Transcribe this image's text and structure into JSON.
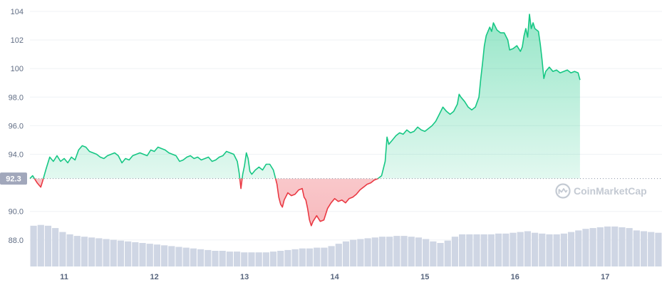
{
  "chart_data": {
    "type": "area",
    "baseline": 92.3,
    "baseline_label": "92.3",
    "ylim": [
      86.0,
      104.5
    ],
    "y_ticks": [
      "104",
      "102",
      "100",
      "98.0",
      "96.0",
      "94.0",
      "90.0",
      "88.0"
    ],
    "y_tick_values": [
      104,
      102,
      100,
      98,
      96,
      94,
      90,
      88
    ],
    "x_ticks": [
      "11",
      "12",
      "13",
      "14",
      "15",
      "16",
      "17"
    ],
    "x_tick_values": [
      11,
      12,
      13,
      14,
      15,
      16,
      17
    ],
    "xlim": [
      10.62,
      17.63
    ],
    "colors": {
      "up": "#16c784",
      "down": "#ea3943",
      "volume": "#cfd6e4",
      "baseline": "#8a93a6",
      "label_bg": "#a1a7bb"
    },
    "series": [
      {
        "values": [
          [
            10.62,
            92.3
          ],
          [
            10.65,
            92.5
          ],
          [
            10.7,
            92.0
          ],
          [
            10.74,
            91.7
          ],
          [
            10.76,
            92.1
          ],
          [
            10.8,
            93.0
          ],
          [
            10.84,
            93.8
          ],
          [
            10.88,
            93.5
          ],
          [
            10.92,
            93.9
          ],
          [
            10.96,
            93.5
          ],
          [
            11.0,
            93.7
          ],
          [
            11.04,
            93.4
          ],
          [
            11.08,
            93.8
          ],
          [
            11.12,
            93.6
          ],
          [
            11.16,
            94.3
          ],
          [
            11.2,
            94.6
          ],
          [
            11.24,
            94.5
          ],
          [
            11.28,
            94.2
          ],
          [
            11.32,
            94.1
          ],
          [
            11.36,
            94.0
          ],
          [
            11.4,
            93.8
          ],
          [
            11.44,
            93.7
          ],
          [
            11.48,
            93.9
          ],
          [
            11.52,
            94.0
          ],
          [
            11.56,
            94.1
          ],
          [
            11.6,
            93.9
          ],
          [
            11.64,
            93.4
          ],
          [
            11.68,
            93.7
          ],
          [
            11.72,
            93.6
          ],
          [
            11.76,
            93.9
          ],
          [
            11.8,
            94.0
          ],
          [
            11.84,
            94.1
          ],
          [
            11.88,
            94.0
          ],
          [
            11.92,
            93.9
          ],
          [
            11.96,
            94.3
          ],
          [
            12.0,
            94.2
          ],
          [
            12.04,
            94.5
          ],
          [
            12.08,
            94.4
          ],
          [
            12.12,
            94.3
          ],
          [
            12.16,
            94.1
          ],
          [
            12.2,
            94.0
          ],
          [
            12.24,
            93.9
          ],
          [
            12.28,
            93.5
          ],
          [
            12.32,
            93.6
          ],
          [
            12.36,
            93.8
          ],
          [
            12.4,
            93.9
          ],
          [
            12.44,
            93.7
          ],
          [
            12.48,
            93.8
          ],
          [
            12.52,
            93.6
          ],
          [
            12.56,
            93.7
          ],
          [
            12.6,
            93.8
          ],
          [
            12.64,
            93.5
          ],
          [
            12.68,
            93.6
          ],
          [
            12.72,
            93.8
          ],
          [
            12.76,
            93.9
          ],
          [
            12.8,
            94.2
          ],
          [
            12.84,
            94.1
          ],
          [
            12.88,
            94.0
          ],
          [
            12.92,
            93.5
          ],
          [
            12.94,
            92.7
          ],
          [
            12.96,
            91.6
          ],
          [
            12.98,
            92.6
          ],
          [
            13.0,
            93.2
          ],
          [
            13.02,
            94.1
          ],
          [
            13.04,
            93.7
          ],
          [
            13.06,
            92.8
          ],
          [
            13.08,
            92.6
          ],
          [
            13.12,
            92.9
          ],
          [
            13.16,
            93.1
          ],
          [
            13.2,
            92.9
          ],
          [
            13.24,
            93.3
          ],
          [
            13.28,
            93.3
          ],
          [
            13.32,
            92.9
          ],
          [
            13.34,
            92.4
          ],
          [
            13.36,
            91.9
          ],
          [
            13.38,
            91.0
          ],
          [
            13.4,
            90.5
          ],
          [
            13.42,
            90.3
          ],
          [
            13.44,
            90.8
          ],
          [
            13.48,
            91.3
          ],
          [
            13.52,
            91.1
          ],
          [
            13.56,
            91.2
          ],
          [
            13.6,
            91.5
          ],
          [
            13.64,
            91.6
          ],
          [
            13.66,
            91.0
          ],
          [
            13.68,
            90.8
          ],
          [
            13.7,
            90.2
          ],
          [
            13.72,
            89.4
          ],
          [
            13.74,
            89.0
          ],
          [
            13.76,
            89.3
          ],
          [
            13.8,
            89.7
          ],
          [
            13.84,
            89.3
          ],
          [
            13.88,
            89.4
          ],
          [
            13.92,
            90.2
          ],
          [
            13.96,
            90.6
          ],
          [
            14.0,
            90.9
          ],
          [
            14.04,
            90.7
          ],
          [
            14.08,
            90.8
          ],
          [
            14.12,
            90.6
          ],
          [
            14.16,
            90.9
          ],
          [
            14.2,
            91.0
          ],
          [
            14.24,
            91.2
          ],
          [
            14.28,
            91.5
          ],
          [
            14.32,
            91.7
          ],
          [
            14.36,
            91.9
          ],
          [
            14.4,
            92.0
          ],
          [
            14.44,
            92.2
          ],
          [
            14.48,
            92.3
          ],
          [
            14.52,
            92.5
          ],
          [
            14.56,
            93.5
          ],
          [
            14.58,
            95.2
          ],
          [
            14.6,
            94.7
          ],
          [
            14.64,
            95.0
          ],
          [
            14.68,
            95.3
          ],
          [
            14.72,
            95.5
          ],
          [
            14.76,
            95.4
          ],
          [
            14.8,
            95.7
          ],
          [
            14.84,
            95.5
          ],
          [
            14.88,
            95.6
          ],
          [
            14.92,
            95.9
          ],
          [
            14.96,
            95.7
          ],
          [
            15.0,
            95.6
          ],
          [
            15.04,
            95.8
          ],
          [
            15.08,
            96.0
          ],
          [
            15.12,
            96.3
          ],
          [
            15.16,
            96.8
          ],
          [
            15.2,
            97.3
          ],
          [
            15.24,
            97.0
          ],
          [
            15.28,
            96.8
          ],
          [
            15.32,
            97.0
          ],
          [
            15.36,
            97.5
          ],
          [
            15.38,
            98.2
          ],
          [
            15.4,
            98.0
          ],
          [
            15.44,
            97.7
          ],
          [
            15.48,
            97.3
          ],
          [
            15.52,
            97.1
          ],
          [
            15.56,
            97.3
          ],
          [
            15.6,
            98.0
          ],
          [
            15.62,
            99.3
          ],
          [
            15.64,
            100.4
          ],
          [
            15.66,
            101.6
          ],
          [
            15.68,
            102.3
          ],
          [
            15.72,
            102.9
          ],
          [
            15.74,
            102.6
          ],
          [
            15.76,
            103.2
          ],
          [
            15.8,
            102.7
          ],
          [
            15.84,
            102.5
          ],
          [
            15.88,
            102.5
          ],
          [
            15.92,
            102.0
          ],
          [
            15.94,
            101.3
          ],
          [
            15.98,
            101.4
          ],
          [
            16.02,
            101.6
          ],
          [
            16.06,
            101.2
          ],
          [
            16.08,
            101.5
          ],
          [
            16.1,
            102.3
          ],
          [
            16.12,
            102.8
          ],
          [
            16.14,
            102.2
          ],
          [
            16.16,
            103.8
          ],
          [
            16.18,
            102.8
          ],
          [
            16.2,
            103.2
          ],
          [
            16.22,
            102.8
          ],
          [
            16.26,
            102.6
          ],
          [
            16.28,
            101.7
          ],
          [
            16.3,
            100.6
          ],
          [
            16.32,
            99.3
          ],
          [
            16.34,
            99.8
          ],
          [
            16.38,
            100.1
          ],
          [
            16.42,
            99.8
          ],
          [
            16.46,
            99.9
          ],
          [
            16.5,
            99.7
          ],
          [
            16.54,
            99.8
          ],
          [
            16.58,
            99.9
          ],
          [
            16.62,
            99.7
          ],
          [
            16.66,
            99.8
          ],
          [
            16.7,
            99.7
          ],
          [
            16.72,
            99.2
          ]
        ]
      }
    ],
    "volume": [
      0.52,
      0.53,
      0.52,
      0.49,
      0.44,
      0.41,
      0.39,
      0.38,
      0.37,
      0.36,
      0.35,
      0.34,
      0.33,
      0.32,
      0.31,
      0.3,
      0.29,
      0.28,
      0.27,
      0.26,
      0.25,
      0.24,
      0.23,
      0.22,
      0.21,
      0.2,
      0.2,
      0.19,
      0.19,
      0.18,
      0.18,
      0.18,
      0.18,
      0.19,
      0.2,
      0.21,
      0.22,
      0.23,
      0.23,
      0.24,
      0.24,
      0.26,
      0.29,
      0.32,
      0.34,
      0.35,
      0.36,
      0.37,
      0.38,
      0.38,
      0.39,
      0.39,
      0.38,
      0.37,
      0.35,
      0.32,
      0.3,
      0.33,
      0.38,
      0.41,
      0.41,
      0.41,
      0.41,
      0.41,
      0.42,
      0.42,
      0.43,
      0.44,
      0.45,
      0.43,
      0.42,
      0.41,
      0.41,
      0.42,
      0.44,
      0.46,
      0.48,
      0.49,
      0.5,
      0.51,
      0.51,
      0.5,
      0.49,
      0.46,
      0.45,
      0.44,
      0.43
    ]
  }
}
